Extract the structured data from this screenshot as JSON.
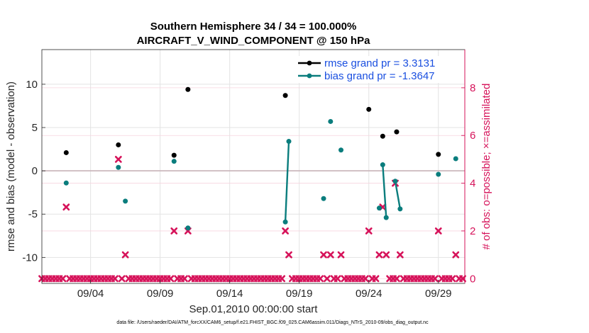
{
  "chart_data": {
    "type": "scatter",
    "title": "Southern Hemisphere 34 / 34 = 100.000%",
    "subtitle": "AIRCRAFT_V_WIND_COMPONENT @ 150 hPa",
    "xlabel": "Sep.01,2010 00:00:00 start",
    "ylabel": "rmse and bias (model - observation)",
    "y2label": "# of obs: o=possible; ×=assimilated",
    "footnote": "data file: /Users/raeder/DAI/ATM_forcXX/CAM6_setup/f.e21.FHIST_BGC.f09_025.CAM6assim.011/Diags_NTrS_2010-09/obs_diag_output.nc",
    "xlim": [
      0.5,
      30.9
    ],
    "ylim": [
      -13,
      14
    ],
    "y2lim": [
      -0.2,
      9.6
    ],
    "grid": true,
    "legend_position": "top-right",
    "x_ticks": [
      {
        "value": 4,
        "label": "09/04"
      },
      {
        "value": 9,
        "label": "09/09"
      },
      {
        "value": 14,
        "label": "09/14"
      },
      {
        "value": 19,
        "label": "09/19"
      },
      {
        "value": 24,
        "label": "09/24"
      },
      {
        "value": 29,
        "label": "09/29"
      }
    ],
    "y_ticks": [
      {
        "value": 10,
        "label": "10"
      },
      {
        "value": 5,
        "label": "5"
      },
      {
        "value": 0,
        "label": "0"
      },
      {
        "value": -5,
        "label": "-5"
      },
      {
        "value": -10,
        "label": "-10"
      }
    ],
    "y2_ticks": [
      {
        "value": 8,
        "label": "8"
      },
      {
        "value": 6,
        "label": "6"
      },
      {
        "value": 4,
        "label": "4"
      },
      {
        "value": 2,
        "label": "2"
      },
      {
        "value": 0,
        "label": "0"
      }
    ],
    "series": [
      {
        "name": "rmse grand pr = 3.3131",
        "color": "#000000",
        "axis": "left",
        "points": [
          [
            2.25,
            2.1
          ],
          [
            6.0,
            3.0
          ],
          [
            10.0,
            1.8
          ],
          [
            11.0,
            9.4
          ],
          [
            18.0,
            8.7
          ],
          [
            24.0,
            7.1
          ],
          [
            25.0,
            4.0
          ],
          [
            26.0,
            4.5
          ],
          [
            29.0,
            1.9
          ]
        ],
        "segments": []
      },
      {
        "name": "bias grand pr = -1.3647",
        "color": "#0a7d7d",
        "axis": "left",
        "points": [
          [
            2.25,
            -1.4
          ],
          [
            6.0,
            0.4
          ],
          [
            6.5,
            -3.5
          ],
          [
            10.0,
            1.1
          ],
          [
            11.0,
            -6.6
          ],
          [
            18.0,
            -5.9
          ],
          [
            18.25,
            3.4
          ],
          [
            20.75,
            -3.2
          ],
          [
            21.25,
            5.7
          ],
          [
            22.0,
            2.4
          ],
          [
            24.75,
            -4.3
          ],
          [
            25.0,
            0.7
          ],
          [
            25.25,
            -5.4
          ],
          [
            25.9,
            -1.2
          ],
          [
            26.25,
            -4.4
          ],
          [
            29.0,
            -0.4
          ],
          [
            30.25,
            1.4
          ]
        ],
        "segments": [
          [
            5,
            6
          ],
          [
            11,
            12
          ],
          [
            13,
            14
          ]
        ]
      },
      {
        "name": "assimilated",
        "color": "#d6135a",
        "axis": "right",
        "points": [
          [
            2.25,
            3
          ],
          [
            6.0,
            5
          ],
          [
            6.5,
            1
          ],
          [
            10.0,
            2
          ],
          [
            11.0,
            2
          ],
          [
            18.0,
            2
          ],
          [
            18.25,
            1
          ],
          [
            20.75,
            1
          ],
          [
            21.25,
            1
          ],
          [
            22.0,
            1
          ],
          [
            24.0,
            2
          ],
          [
            24.75,
            1
          ],
          [
            25.0,
            3
          ],
          [
            25.25,
            1
          ],
          [
            25.9,
            4
          ],
          [
            26.25,
            1
          ],
          [
            29.0,
            2
          ],
          [
            30.25,
            1
          ]
        ]
      }
    ],
    "zero_obs_times_step": 0.25,
    "zero_obs_value": 0
  }
}
